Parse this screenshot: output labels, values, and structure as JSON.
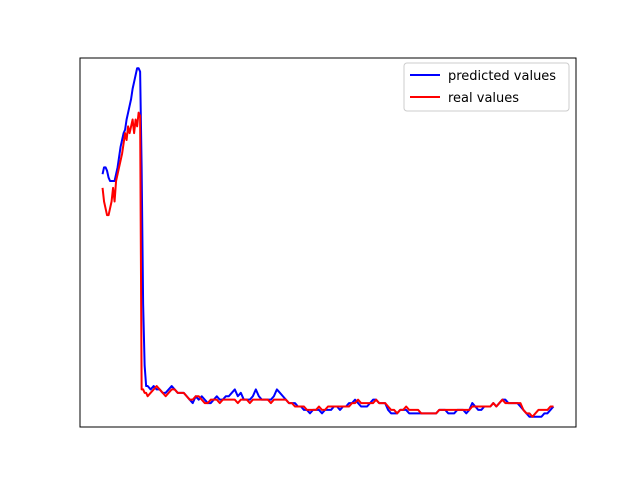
{
  "chart_data": {
    "type": "line",
    "title": "",
    "xlabel": "",
    "ylabel": "",
    "ticks_visible": false,
    "grid": false,
    "legend_placement": "upper-right",
    "xlim": [
      -15,
      315
    ],
    "ylim": [
      -0.06,
      1.02
    ],
    "series": [
      {
        "name": "predicted values",
        "color": "#0000ff",
        "points": [
          [
            0,
            0.68
          ],
          [
            1,
            0.7
          ],
          [
            2,
            0.7
          ],
          [
            3,
            0.69
          ],
          [
            4,
            0.67
          ],
          [
            5,
            0.66
          ],
          [
            6,
            0.66
          ],
          [
            7,
            0.66
          ],
          [
            8,
            0.66
          ],
          [
            9,
            0.68
          ],
          [
            10,
            0.7
          ],
          [
            11,
            0.73
          ],
          [
            12,
            0.76
          ],
          [
            13,
            0.78
          ],
          [
            14,
            0.8
          ],
          [
            15,
            0.81
          ],
          [
            16,
            0.84
          ],
          [
            17,
            0.86
          ],
          [
            18,
            0.88
          ],
          [
            19,
            0.9
          ],
          [
            20,
            0.93
          ],
          [
            21,
            0.95
          ],
          [
            22,
            0.97
          ],
          [
            23,
            0.99
          ],
          [
            24,
            0.99
          ],
          [
            25,
            0.98
          ],
          [
            26,
            0.7
          ],
          [
            27,
            0.3
          ],
          [
            28,
            0.12
          ],
          [
            29,
            0.06
          ],
          [
            30,
            0.06
          ],
          [
            32,
            0.05
          ],
          [
            34,
            0.06
          ],
          [
            36,
            0.05
          ],
          [
            38,
            0.05
          ],
          [
            40,
            0.04
          ],
          [
            42,
            0.04
          ],
          [
            44,
            0.05
          ],
          [
            46,
            0.06
          ],
          [
            48,
            0.05
          ],
          [
            50,
            0.04
          ],
          [
            52,
            0.04
          ],
          [
            54,
            0.04
          ],
          [
            56,
            0.03
          ],
          [
            58,
            0.02
          ],
          [
            60,
            0.01
          ],
          [
            62,
            0.03
          ],
          [
            64,
            0.02
          ],
          [
            66,
            0.03
          ],
          [
            68,
            0.02
          ],
          [
            70,
            0.01
          ],
          [
            72,
            0.01
          ],
          [
            74,
            0.02
          ],
          [
            76,
            0.03
          ],
          [
            78,
            0.02
          ],
          [
            80,
            0.02
          ],
          [
            82,
            0.03
          ],
          [
            84,
            0.03
          ],
          [
            86,
            0.04
          ],
          [
            88,
            0.05
          ],
          [
            90,
            0.03
          ],
          [
            92,
            0.04
          ],
          [
            94,
            0.02
          ],
          [
            96,
            0.02
          ],
          [
            98,
            0.02
          ],
          [
            100,
            0.03
          ],
          [
            102,
            0.05
          ],
          [
            104,
            0.03
          ],
          [
            106,
            0.02
          ],
          [
            108,
            0.02
          ],
          [
            110,
            0.02
          ],
          [
            112,
            0.02
          ],
          [
            114,
            0.03
          ],
          [
            116,
            0.05
          ],
          [
            118,
            0.04
          ],
          [
            120,
            0.03
          ],
          [
            122,
            0.02
          ],
          [
            124,
            0.01
          ],
          [
            126,
            0.01
          ],
          [
            128,
            0.01
          ],
          [
            130,
            0.0
          ],
          [
            132,
            0.0
          ],
          [
            134,
            -0.01
          ],
          [
            136,
            -0.01
          ],
          [
            138,
            -0.02
          ],
          [
            140,
            -0.01
          ],
          [
            142,
            -0.01
          ],
          [
            144,
            -0.01
          ],
          [
            146,
            -0.02
          ],
          [
            148,
            -0.01
          ],
          [
            150,
            -0.01
          ],
          [
            152,
            -0.01
          ],
          [
            154,
            -0.0
          ],
          [
            156,
            -0.0
          ],
          [
            158,
            -0.01
          ],
          [
            160,
            0.0
          ],
          [
            162,
            0.0
          ],
          [
            164,
            0.01
          ],
          [
            166,
            0.01
          ],
          [
            168,
            0.02
          ],
          [
            170,
            0.01
          ],
          [
            172,
            0.0
          ],
          [
            174,
            0.0
          ],
          [
            176,
            0.0
          ],
          [
            178,
            0.01
          ],
          [
            180,
            0.02
          ],
          [
            182,
            0.02
          ],
          [
            184,
            0.01
          ],
          [
            186,
            0.01
          ],
          [
            188,
            0.01
          ],
          [
            190,
            -0.01
          ],
          [
            192,
            -0.02
          ],
          [
            194,
            -0.02
          ],
          [
            196,
            -0.02
          ],
          [
            198,
            -0.01
          ],
          [
            200,
            -0.01
          ],
          [
            202,
            -0.01
          ],
          [
            204,
            -0.02
          ],
          [
            206,
            -0.02
          ],
          [
            208,
            -0.02
          ],
          [
            210,
            -0.02
          ],
          [
            212,
            -0.02
          ],
          [
            214,
            -0.02
          ],
          [
            216,
            -0.02
          ],
          [
            218,
            -0.02
          ],
          [
            220,
            -0.02
          ],
          [
            222,
            -0.02
          ],
          [
            224,
            -0.01
          ],
          [
            226,
            -0.01
          ],
          [
            228,
            -0.01
          ],
          [
            230,
            -0.02
          ],
          [
            232,
            -0.02
          ],
          [
            234,
            -0.02
          ],
          [
            236,
            -0.01
          ],
          [
            238,
            -0.01
          ],
          [
            240,
            -0.01
          ],
          [
            242,
            -0.02
          ],
          [
            244,
            -0.01
          ],
          [
            246,
            0.01
          ],
          [
            248,
            -0.0
          ],
          [
            250,
            -0.01
          ],
          [
            252,
            -0.01
          ],
          [
            254,
            0.0
          ],
          [
            256,
            0.0
          ],
          [
            258,
            0.0
          ],
          [
            260,
            0.01
          ],
          [
            262,
            0.0
          ],
          [
            264,
            0.01
          ],
          [
            266,
            0.02
          ],
          [
            268,
            0.02
          ],
          [
            270,
            0.01
          ],
          [
            272,
            0.01
          ],
          [
            274,
            0.01
          ],
          [
            276,
            0.01
          ],
          [
            278,
            0.0
          ],
          [
            280,
            -0.01
          ],
          [
            282,
            -0.02
          ],
          [
            284,
            -0.03
          ],
          [
            286,
            -0.03
          ],
          [
            288,
            -0.03
          ],
          [
            290,
            -0.03
          ],
          [
            292,
            -0.03
          ],
          [
            294,
            -0.02
          ],
          [
            296,
            -0.02
          ],
          [
            298,
            -0.01
          ],
          [
            300,
            -0.0
          ]
        ]
      },
      {
        "name": "real values",
        "color": "#ff0000",
        "points": [
          [
            0,
            0.64
          ],
          [
            1,
            0.6
          ],
          [
            2,
            0.58
          ],
          [
            3,
            0.56
          ],
          [
            4,
            0.56
          ],
          [
            5,
            0.58
          ],
          [
            6,
            0.6
          ],
          [
            7,
            0.64
          ],
          [
            8,
            0.6
          ],
          [
            9,
            0.66
          ],
          [
            10,
            0.68
          ],
          [
            11,
            0.7
          ],
          [
            12,
            0.72
          ],
          [
            13,
            0.74
          ],
          [
            14,
            0.77
          ],
          [
            15,
            0.8
          ],
          [
            16,
            0.78
          ],
          [
            17,
            0.82
          ],
          [
            18,
            0.8
          ],
          [
            19,
            0.82
          ],
          [
            20,
            0.84
          ],
          [
            21,
            0.8
          ],
          [
            22,
            0.84
          ],
          [
            23,
            0.82
          ],
          [
            24,
            0.86
          ],
          [
            25,
            0.85
          ],
          [
            26,
            0.05
          ],
          [
            27,
            0.05
          ],
          [
            28,
            0.04
          ],
          [
            29,
            0.04
          ],
          [
            30,
            0.03
          ],
          [
            32,
            0.04
          ],
          [
            34,
            0.05
          ],
          [
            36,
            0.06
          ],
          [
            38,
            0.05
          ],
          [
            40,
            0.04
          ],
          [
            42,
            0.03
          ],
          [
            44,
            0.04
          ],
          [
            46,
            0.05
          ],
          [
            48,
            0.05
          ],
          [
            50,
            0.04
          ],
          [
            52,
            0.04
          ],
          [
            54,
            0.04
          ],
          [
            56,
            0.03
          ],
          [
            58,
            0.02
          ],
          [
            60,
            0.02
          ],
          [
            62,
            0.03
          ],
          [
            64,
            0.03
          ],
          [
            66,
            0.02
          ],
          [
            68,
            0.01
          ],
          [
            70,
            0.01
          ],
          [
            72,
            0.02
          ],
          [
            74,
            0.02
          ],
          [
            76,
            0.02
          ],
          [
            78,
            0.01
          ],
          [
            80,
            0.02
          ],
          [
            82,
            0.02
          ],
          [
            84,
            0.02
          ],
          [
            86,
            0.02
          ],
          [
            88,
            0.02
          ],
          [
            90,
            0.01
          ],
          [
            92,
            0.02
          ],
          [
            94,
            0.02
          ],
          [
            96,
            0.02
          ],
          [
            98,
            0.01
          ],
          [
            100,
            0.02
          ],
          [
            102,
            0.02
          ],
          [
            104,
            0.02
          ],
          [
            106,
            0.02
          ],
          [
            108,
            0.02
          ],
          [
            110,
            0.02
          ],
          [
            112,
            0.01
          ],
          [
            114,
            0.02
          ],
          [
            116,
            0.02
          ],
          [
            118,
            0.02
          ],
          [
            120,
            0.02
          ],
          [
            122,
            0.02
          ],
          [
            124,
            0.01
          ],
          [
            126,
            0.01
          ],
          [
            128,
            0.0
          ],
          [
            130,
            0.0
          ],
          [
            132,
            0.0
          ],
          [
            134,
            -0.0
          ],
          [
            136,
            -0.01
          ],
          [
            138,
            -0.01
          ],
          [
            140,
            -0.01
          ],
          [
            142,
            -0.01
          ],
          [
            144,
            -0.0
          ],
          [
            146,
            -0.01
          ],
          [
            148,
            -0.01
          ],
          [
            150,
            0.0
          ],
          [
            152,
            -0.0
          ],
          [
            154,
            0.0
          ],
          [
            156,
            -0.0
          ],
          [
            158,
            0.0
          ],
          [
            160,
            0.0
          ],
          [
            162,
            0.0
          ],
          [
            164,
            0.0
          ],
          [
            166,
            0.01
          ],
          [
            168,
            0.01
          ],
          [
            170,
            0.02
          ],
          [
            172,
            0.01
          ],
          [
            174,
            0.01
          ],
          [
            176,
            0.01
          ],
          [
            178,
            0.01
          ],
          [
            180,
            0.01
          ],
          [
            182,
            0.02
          ],
          [
            184,
            0.01
          ],
          [
            186,
            0.01
          ],
          [
            188,
            0.01
          ],
          [
            190,
            -0.0
          ],
          [
            192,
            -0.01
          ],
          [
            194,
            -0.01
          ],
          [
            196,
            -0.02
          ],
          [
            198,
            -0.01
          ],
          [
            200,
            -0.01
          ],
          [
            202,
            -0.0
          ],
          [
            204,
            -0.01
          ],
          [
            206,
            -0.01
          ],
          [
            208,
            -0.01
          ],
          [
            210,
            -0.01
          ],
          [
            212,
            -0.02
          ],
          [
            214,
            -0.02
          ],
          [
            216,
            -0.02
          ],
          [
            218,
            -0.02
          ],
          [
            220,
            -0.02
          ],
          [
            222,
            -0.02
          ],
          [
            224,
            -0.01
          ],
          [
            226,
            -0.01
          ],
          [
            228,
            -0.01
          ],
          [
            230,
            -0.01
          ],
          [
            232,
            -0.01
          ],
          [
            234,
            -0.01
          ],
          [
            236,
            -0.01
          ],
          [
            238,
            -0.01
          ],
          [
            240,
            -0.01
          ],
          [
            242,
            -0.01
          ],
          [
            244,
            -0.01
          ],
          [
            246,
            0.0
          ],
          [
            248,
            -0.0
          ],
          [
            250,
            0.0
          ],
          [
            252,
            -0.0
          ],
          [
            254,
            0.0
          ],
          [
            256,
            0.0
          ],
          [
            258,
            0.0
          ],
          [
            260,
            0.01
          ],
          [
            262,
            0.0
          ],
          [
            264,
            0.01
          ],
          [
            266,
            0.02
          ],
          [
            268,
            0.01
          ],
          [
            270,
            0.01
          ],
          [
            272,
            0.01
          ],
          [
            274,
            0.01
          ],
          [
            276,
            0.01
          ],
          [
            278,
            0.01
          ],
          [
            280,
            -0.01
          ],
          [
            282,
            -0.02
          ],
          [
            284,
            -0.02
          ],
          [
            286,
            -0.03
          ],
          [
            288,
            -0.02
          ],
          [
            290,
            -0.01
          ],
          [
            292,
            -0.01
          ],
          [
            294,
            -0.01
          ],
          [
            296,
            -0.01
          ],
          [
            298,
            -0.0
          ],
          [
            300,
            0.0
          ]
        ]
      }
    ]
  }
}
